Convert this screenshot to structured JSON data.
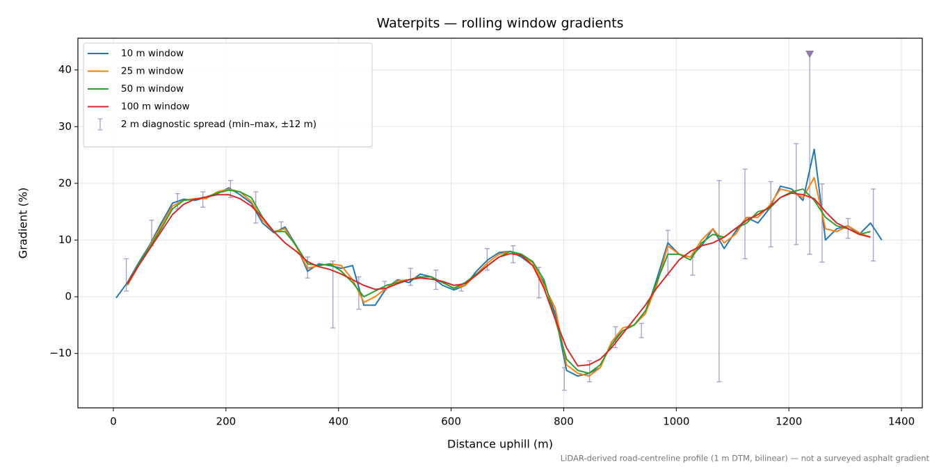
{
  "chart_data": {
    "type": "line",
    "title": "Waterpits — rolling window gradients",
    "xlabel": "Distance uphill (m)",
    "ylabel": "Gradient (%)",
    "footnote": "LiDAR-derived road-centreline profile (1 m DTM, bilinear) — not a surveyed asphalt gradient",
    "xlim": [
      -63,
      1437
    ],
    "ylim": [
      -19.6,
      45.6
    ],
    "xticks": [
      0,
      200,
      400,
      600,
      800,
      1000,
      1200,
      1400
    ],
    "yticks": [
      {
        "value": -10,
        "label": "−10"
      },
      0,
      10,
      20,
      30,
      40
    ],
    "grid": true,
    "legend": "upper-left",
    "x": [
      5,
      25,
      45,
      65,
      85,
      105,
      125,
      145,
      165,
      185,
      205,
      225,
      245,
      265,
      285,
      305,
      325,
      345,
      365,
      385,
      405,
      425,
      445,
      465,
      485,
      505,
      525,
      545,
      565,
      585,
      605,
      625,
      645,
      665,
      685,
      705,
      725,
      745,
      765,
      785,
      805,
      825,
      845,
      865,
      885,
      905,
      925,
      945,
      965,
      985,
      1005,
      1025,
      1045,
      1065,
      1085,
      1105,
      1125,
      1145,
      1165,
      1185,
      1205,
      1225,
      1245,
      1265,
      1285,
      1305,
      1325,
      1345,
      1365
    ],
    "series": [
      {
        "name": "10 m window",
        "color": "#1f77b4",
        "values": [
          -0.2,
          2.5,
          6,
          9.2,
          13,
          16.5,
          17.2,
          17,
          17.5,
          18.2,
          19.2,
          18,
          16.5,
          13,
          11.3,
          12.3,
          9,
          4.5,
          5.8,
          5.5,
          5,
          5.5,
          -1.5,
          -1.5,
          1.5,
          3,
          2.5,
          4,
          3.5,
          2,
          1.2,
          2,
          4.5,
          6.5,
          7.8,
          8,
          7,
          5.5,
          2.5,
          -3,
          -13,
          -14,
          -13.5,
          -12.5,
          -8,
          -6,
          -5,
          -3,
          3,
          9.5,
          7.5,
          7,
          9,
          12,
          8.5,
          11.5,
          14,
          13,
          15.5,
          19.5,
          19,
          17,
          26,
          10,
          12,
          12.5,
          11,
          13,
          10
        ]
      },
      {
        "name": "25 m window",
        "color": "#ff7f0e",
        "values": [
          null,
          2,
          5.5,
          9,
          12.5,
          16,
          17,
          17.3,
          17.3,
          18.5,
          19,
          18.5,
          16.8,
          13.5,
          11.5,
          12,
          8.8,
          5,
          5.5,
          5.8,
          5.5,
          3,
          -1,
          0,
          1.5,
          2.8,
          3,
          3.5,
          3.5,
          2.5,
          1.5,
          2,
          4,
          6,
          7.5,
          8,
          7.3,
          6,
          2,
          -2,
          -12,
          -13.5,
          -14,
          -12.5,
          -8,
          -5.5,
          -5,
          -3,
          2,
          9,
          7.5,
          7,
          10,
          12,
          9.5,
          11,
          14,
          14,
          16,
          19,
          18.5,
          17.5,
          21,
          12,
          11.5,
          12.5,
          11.3,
          10.5,
          null
        ]
      },
      {
        "name": "50 m window",
        "color": "#2ca02c",
        "values": [
          null,
          2.2,
          5.8,
          8.8,
          12,
          15.5,
          17,
          17.2,
          17.6,
          18.3,
          18.8,
          18.5,
          17.5,
          14,
          11.5,
          11.5,
          9,
          5.8,
          5.5,
          5.8,
          4.5,
          2.5,
          0,
          1,
          2,
          2.5,
          3,
          3.5,
          3.5,
          2.5,
          1.5,
          2.5,
          4,
          5.5,
          7,
          8,
          7.5,
          6.2,
          3,
          -4,
          -11,
          -13,
          -13.5,
          -12,
          -8.5,
          -6,
          -5,
          -2.5,
          2.5,
          7.5,
          7.5,
          6.5,
          9.5,
          11,
          10.5,
          12,
          13,
          15,
          15.5,
          17.5,
          18.5,
          19,
          17,
          14,
          12.5,
          12,
          11,
          11.5,
          null
        ]
      },
      {
        "name": "100 m window",
        "color": "#d62728",
        "values": [
          null,
          2.3,
          5.5,
          8.5,
          11.5,
          14.5,
          16.3,
          17.2,
          17.6,
          18,
          18,
          17.3,
          16,
          14,
          11.5,
          9.5,
          8,
          6.2,
          5.3,
          4.8,
          4,
          3,
          2,
          1.3,
          1.5,
          2.3,
          3,
          3.3,
          3.1,
          2.7,
          2,
          2.3,
          3.8,
          5.5,
          7,
          7.6,
          7.3,
          5.5,
          1.5,
          -4,
          -9,
          -12.2,
          -12,
          -11,
          -9,
          -6.5,
          -4,
          -1.5,
          1.5,
          4,
          6.5,
          8,
          9,
          9.5,
          10.5,
          12,
          13.5,
          14.5,
          15.8,
          17.5,
          18.3,
          18,
          17.3,
          15,
          13,
          12,
          11,
          10.5,
          null
        ]
      }
    ],
    "errorbars": {
      "name": "2 m diagnostic spread (min–max, ±12 m)",
      "color": "#a79bc8",
      "x": [
        23,
        68,
        114,
        159,
        208,
        253,
        298,
        345,
        390,
        436,
        482,
        528,
        573,
        618,
        664,
        710,
        756,
        801,
        846,
        892,
        938,
        985,
        1029,
        1076,
        1122,
        1168,
        1213,
        1237,
        1259,
        1305,
        1350
      ],
      "min": [
        1,
        9,
        15.5,
        15.8,
        17.5,
        13,
        11.5,
        3.3,
        -5.5,
        -2.2,
        1.2,
        2,
        1.3,
        1,
        4.7,
        6,
        -0.2,
        -16.5,
        -15,
        -9,
        -7.2,
        3.8,
        3.8,
        -15,
        6.7,
        8.8,
        9.2,
        7.5,
        6.1,
        10.3,
        6.3
      ],
      "max": [
        6.7,
        13.5,
        18.2,
        18.5,
        20.5,
        18.5,
        13.2,
        7,
        6.3,
        3.5,
        2.7,
        5,
        4.7,
        2,
        8.5,
        9,
        5.2,
        -12.5,
        -11.3,
        -5.3,
        -4.7,
        11.7,
        7,
        20.5,
        22.5,
        20.3,
        27,
        42.8,
        19.9,
        13.8,
        19
      ]
    },
    "flag": {
      "x": 1237,
      "y": 42.8,
      "color": "#8c7ab0"
    }
  }
}
